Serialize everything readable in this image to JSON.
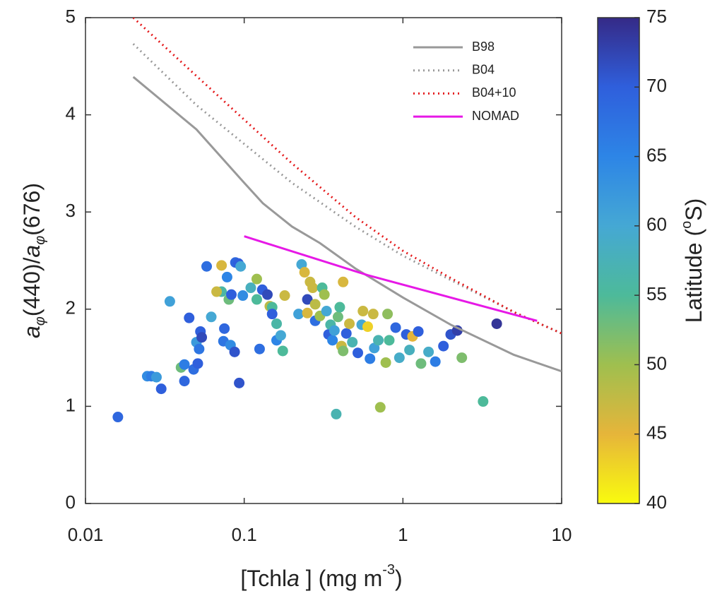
{
  "chart_data": {
    "type": "scatter",
    "x_label": [
      "[Tchl",
      "a",
      " ] (mg m",
      "-3",
      ")"
    ],
    "y_label": [
      "a",
      "φ",
      "(440)/",
      "a",
      "φ",
      "(676)"
    ],
    "xscale": "log",
    "xlim": [
      0.01,
      10
    ],
    "xticks": [
      0.01,
      0.1,
      1,
      10
    ],
    "ylim": [
      0,
      5
    ],
    "yticks": [
      0,
      1,
      2,
      3,
      4,
      5
    ],
    "legend": "upper right",
    "lines": [
      {
        "name": "B98",
        "color": "#999999",
        "style": "solid",
        "x": [
          0.02,
          0.05,
          0.1,
          0.131,
          0.2,
          0.3,
          0.5,
          1,
          2,
          5,
          10
        ],
        "y": [
          4.39,
          3.85,
          3.3,
          3.09,
          2.85,
          2.68,
          2.42,
          2.12,
          1.84,
          1.53,
          1.36
        ]
      },
      {
        "name": "B04",
        "color": "#999999",
        "style": "dotted",
        "x": [
          0.02,
          0.05,
          0.1,
          0.2,
          0.5,
          1,
          2,
          5,
          10
        ],
        "y": [
          4.73,
          4.1,
          3.7,
          3.3,
          2.85,
          2.55,
          2.3,
          1.97,
          1.75
        ]
      },
      {
        "name": "B04+10",
        "color": "#e41a1c",
        "style": "dotted",
        "x": [
          0.02,
          0.05,
          0.1,
          0.2,
          0.5,
          1,
          2,
          5,
          10
        ],
        "y": [
          5.0,
          4.4,
          3.95,
          3.5,
          2.95,
          2.6,
          2.32,
          1.97,
          1.75
        ]
      },
      {
        "name": "NOMAD",
        "color": "#e619e6",
        "style": "solid",
        "x": [
          0.1,
          0.6,
          7
        ],
        "y": [
          2.75,
          2.35,
          1.88
        ]
      }
    ],
    "points": {
      "x": [
        0.016,
        0.0245,
        0.026,
        0.028,
        0.03,
        0.034,
        0.04,
        0.042,
        0.042,
        0.045,
        0.048,
        0.05,
        0.051,
        0.052,
        0.053,
        0.054,
        0.058,
        0.062,
        0.072,
        0.072,
        0.074,
        0.075,
        0.067,
        0.078,
        0.08,
        0.082,
        0.083,
        0.087,
        0.088,
        0.092,
        0.093,
        0.095,
        0.098,
        0.11,
        0.12,
        0.12,
        0.125,
        0.13,
        0.14,
        0.145,
        0.15,
        0.15,
        0.16,
        0.16,
        0.17,
        0.175,
        0.18,
        0.22,
        0.23,
        0.24,
        0.25,
        0.25,
        0.26,
        0.27,
        0.28,
        0.28,
        0.3,
        0.31,
        0.32,
        0.33,
        0.34,
        0.35,
        0.36,
        0.37,
        0.38,
        0.39,
        0.4,
        0.41,
        0.42,
        0.42,
        0.44,
        0.46,
        0.48,
        0.52,
        0.55,
        0.56,
        0.6,
        0.62,
        0.65,
        0.66,
        0.72,
        0.7,
        0.78,
        0.8,
        0.82,
        0.9,
        0.95,
        1.05,
        1.1,
        1.15,
        1.25,
        1.3,
        1.45,
        1.6,
        1.8,
        2.0,
        2.2,
        2.35,
        3.2,
        3.9
      ],
      "y": [
        0.89,
        1.31,
        1.31,
        1.3,
        1.18,
        2.08,
        1.4,
        1.26,
        1.43,
        1.91,
        1.38,
        1.66,
        1.44,
        1.59,
        1.77,
        1.71,
        2.44,
        1.92,
        2.45,
        2.18,
        1.67,
        1.8,
        2.18,
        2.33,
        2.1,
        1.63,
        2.15,
        1.56,
        2.48,
        2.47,
        1.24,
        2.44,
        2.14,
        2.22,
        2.31,
        2.1,
        1.59,
        2.2,
        2.15,
        2.03,
        2.02,
        1.95,
        1.85,
        1.68,
        1.73,
        1.57,
        2.14,
        1.95,
        2.46,
        2.38,
        2.1,
        1.96,
        2.28,
        2.22,
        1.88,
        2.05,
        1.93,
        2.22,
        2.15,
        1.98,
        1.74,
        1.84,
        1.68,
        1.78,
        0.92,
        1.92,
        2.02,
        1.62,
        2.28,
        1.57,
        1.75,
        1.85,
        1.66,
        1.55,
        1.84,
        1.98,
        1.82,
        1.49,
        1.95,
        1.6,
        0.99,
        1.68,
        1.45,
        1.95,
        1.68,
        1.81,
        1.5,
        1.74,
        1.58,
        1.72,
        1.77,
        1.44,
        1.56,
        1.46,
        1.62,
        1.74,
        1.78,
        1.5,
        1.05,
        1.85
      ],
      "latitude": [
        69,
        64,
        66,
        62,
        70,
        61,
        53,
        69,
        66,
        70,
        68,
        62,
        70,
        67,
        70,
        72,
        68,
        60,
        46,
        56,
        67,
        69,
        47,
        65,
        53,
        64,
        70,
        71,
        69,
        70,
        71,
        60,
        64,
        58,
        50,
        55,
        68,
        70,
        72,
        48,
        55,
        70,
        56,
        65,
        60,
        55,
        47,
        61,
        60,
        46,
        72,
        46,
        47,
        47,
        68,
        48,
        50,
        55,
        50,
        60,
        70,
        56,
        65,
        61,
        57,
        53,
        55,
        47,
        46,
        52,
        70,
        47,
        57,
        70,
        60,
        47,
        43,
        66,
        47,
        61,
        50,
        57,
        50,
        51,
        55,
        69,
        59,
        70,
        58,
        45,
        70,
        53,
        59,
        66,
        70,
        71,
        73,
        52,
        55,
        74
      ]
    },
    "colorbar": {
      "label": [
        "Latitude (",
        "o",
        "S)"
      ],
      "lim": [
        40,
        75
      ],
      "ticks": [
        40,
        45,
        50,
        55,
        60,
        65,
        70,
        75
      ],
      "colors": [
        "#f9fb0e",
        "#e6b53a",
        "#9fbf4f",
        "#4dba9a",
        "#45a8d4",
        "#2d85e6",
        "#2f5fdc",
        "#352a87"
      ]
    }
  }
}
